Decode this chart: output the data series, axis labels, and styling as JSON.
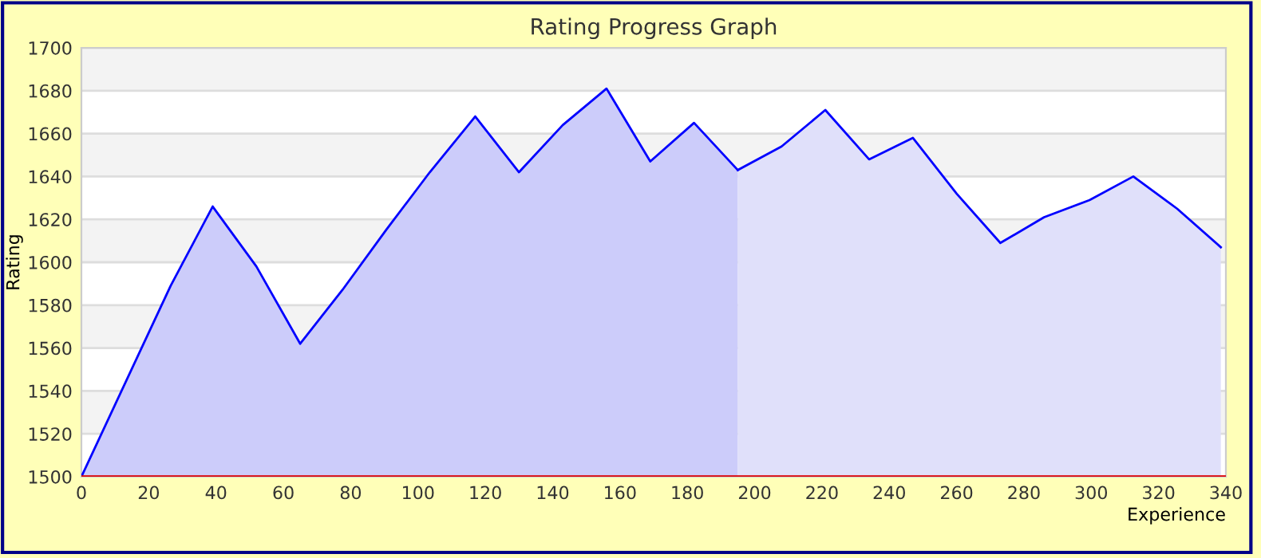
{
  "chart_data": {
    "type": "area",
    "title": "Rating Progress Graph",
    "xlabel": "Experience",
    "ylabel": "Rating",
    "xlim": [
      0,
      340
    ],
    "xticks": [
      0,
      20,
      40,
      60,
      80,
      100,
      120,
      140,
      160,
      180,
      200,
      220,
      240,
      260,
      280,
      300,
      320,
      340
    ],
    "ylim": [
      1500,
      1700
    ],
    "yticks": [
      1500,
      1520,
      1540,
      1560,
      1580,
      1600,
      1620,
      1640,
      1660,
      1680,
      1700
    ],
    "grid": "y",
    "legend": false,
    "series": [
      {
        "color": "#ccccfa",
        "x": [
          0,
          26.5,
          39,
          52,
          65,
          77.5,
          90.5,
          103.5,
          117,
          130,
          143,
          156,
          169,
          182,
          195
        ],
        "values": [
          1500,
          1589,
          1626,
          1598,
          1562,
          1587,
          1615,
          1642,
          1668,
          1642,
          1664,
          1681,
          1647,
          1665,
          1643
        ]
      },
      {
        "color": "#e0e0fa",
        "x": [
          195,
          208,
          221,
          234,
          247,
          260,
          273,
          286,
          299.5,
          312.5,
          325.5,
          338.5
        ],
        "values": [
          1643,
          1654,
          1671,
          1648,
          1658,
          1632,
          1609,
          1621,
          1629,
          1640,
          1625,
          1607
        ]
      }
    ],
    "ref_lines": [
      {
        "axis": "y",
        "value": 1500,
        "color": "#dd0000"
      }
    ],
    "bands": [
      {
        "axis": "y",
        "from": 1520,
        "to": 1540,
        "color": "#f3f3f3"
      },
      {
        "axis": "y",
        "from": 1560,
        "to": 1580,
        "color": "#f3f3f3"
      },
      {
        "axis": "y",
        "from": 1600,
        "to": 1620,
        "color": "#f3f3f3"
      },
      {
        "axis": "y",
        "from": 1640,
        "to": 1660,
        "color": "#f3f3f3"
      },
      {
        "axis": "y",
        "from": 1680,
        "to": 1700,
        "color": "#f3f3f3"
      }
    ]
  }
}
